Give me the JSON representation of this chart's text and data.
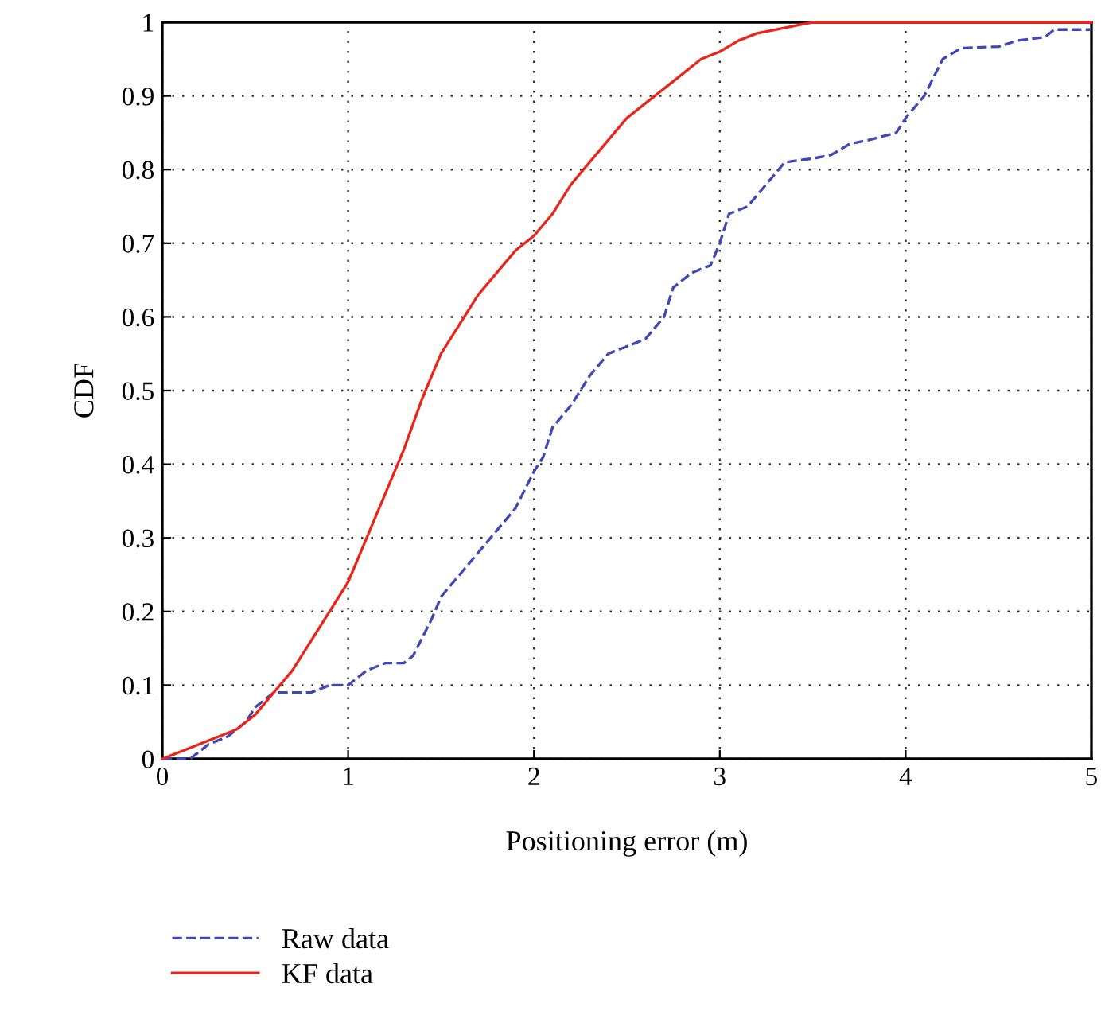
{
  "chart_data": {
    "type": "line",
    "xlabel": "Positioning error (m)",
    "ylabel": "CDF",
    "xlim": [
      0,
      5
    ],
    "ylim": [
      0,
      1
    ],
    "xticks": [
      0,
      1,
      2,
      3,
      4,
      5
    ],
    "yticks": [
      0,
      0.1,
      0.2,
      0.3,
      0.4,
      0.5,
      0.6,
      0.7,
      0.8,
      0.9,
      1
    ],
    "grid": true,
    "legend": "bottom",
    "series": [
      {
        "name": "Raw data",
        "color": "#3f48b4",
        "line_style": "dashed",
        "x": [
          0,
          0.15,
          0.25,
          0.35,
          0.45,
          0.5,
          0.6,
          0.8,
          0.9,
          1.0,
          1.1,
          1.2,
          1.3,
          1.35,
          1.45,
          1.5,
          1.6,
          1.7,
          1.8,
          1.9,
          2.0,
          2.05,
          2.1,
          2.2,
          2.3,
          2.4,
          2.5,
          2.6,
          2.7,
          2.75,
          2.85,
          2.95,
          3.0,
          3.05,
          3.15,
          3.25,
          3.35,
          3.5,
          3.6,
          3.7,
          3.8,
          3.95,
          4.0,
          4.1,
          4.2,
          4.3,
          4.5,
          4.6,
          4.75,
          4.8,
          5.0
        ],
        "values": [
          0,
          0,
          0.02,
          0.03,
          0.05,
          0.07,
          0.09,
          0.09,
          0.1,
          0.1,
          0.12,
          0.13,
          0.13,
          0.14,
          0.19,
          0.22,
          0.25,
          0.28,
          0.31,
          0.34,
          0.39,
          0.41,
          0.45,
          0.48,
          0.52,
          0.55,
          0.56,
          0.57,
          0.6,
          0.64,
          0.66,
          0.67,
          0.7,
          0.74,
          0.75,
          0.78,
          0.81,
          0.815,
          0.82,
          0.835,
          0.84,
          0.85,
          0.87,
          0.9,
          0.95,
          0.965,
          0.967,
          0.975,
          0.98,
          0.99,
          0.99
        ]
      },
      {
        "name": "KF data",
        "color": "#e8261b",
        "line_style": "solid",
        "x": [
          0,
          0.2,
          0.4,
          0.5,
          0.6,
          0.7,
          0.8,
          0.9,
          1.0,
          1.1,
          1.2,
          1.3,
          1.4,
          1.5,
          1.6,
          1.7,
          1.8,
          1.9,
          2.0,
          2.1,
          2.2,
          2.3,
          2.4,
          2.5,
          2.6,
          2.7,
          2.8,
          2.9,
          3.0,
          3.1,
          3.2,
          3.3,
          3.4,
          3.5,
          5.0
        ],
        "values": [
          0,
          0.02,
          0.04,
          0.06,
          0.09,
          0.12,
          0.16,
          0.2,
          0.24,
          0.3,
          0.36,
          0.42,
          0.49,
          0.55,
          0.59,
          0.63,
          0.66,
          0.69,
          0.71,
          0.74,
          0.78,
          0.81,
          0.84,
          0.87,
          0.89,
          0.91,
          0.93,
          0.95,
          0.96,
          0.975,
          0.985,
          0.99,
          0.995,
          1.0,
          1.0
        ]
      }
    ]
  }
}
